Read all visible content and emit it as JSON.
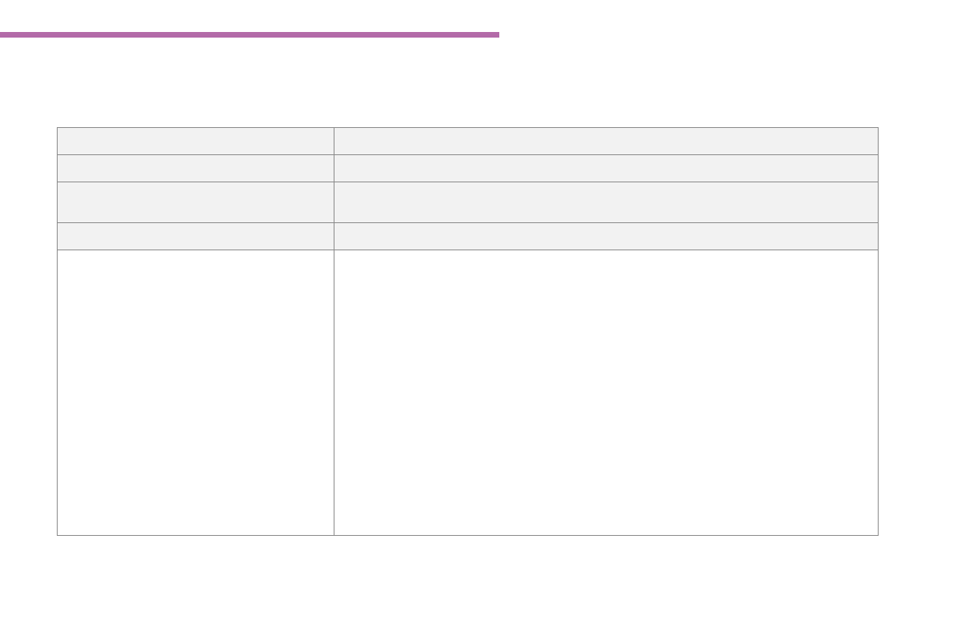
{
  "accent_color": "#b36aa8",
  "border_color": "#8a8a8a",
  "table": {
    "rows": [
      {
        "shaded": true,
        "cells": [
          "",
          ""
        ]
      },
      {
        "shaded": true,
        "cells": [
          "",
          ""
        ]
      },
      {
        "shaded": true,
        "cells": [
          "",
          ""
        ]
      },
      {
        "shaded": true,
        "cells": [
          "",
          ""
        ]
      },
      {
        "shaded": false,
        "cells": [
          "",
          ""
        ]
      }
    ]
  }
}
